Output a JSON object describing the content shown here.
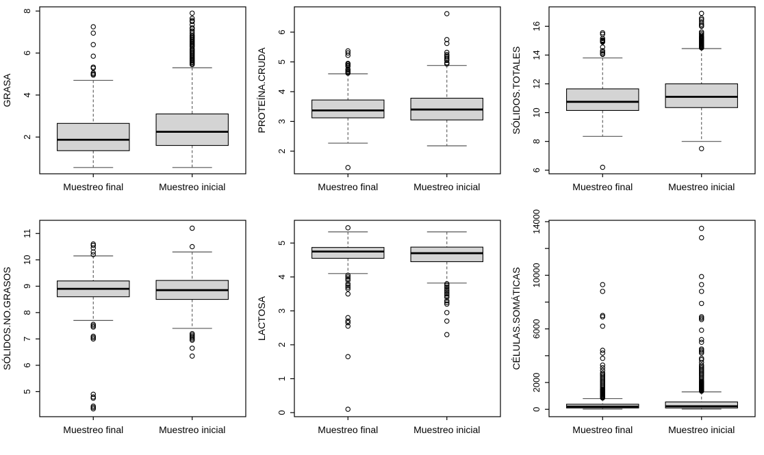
{
  "page": {
    "background": "#ffffff",
    "plot_style": {
      "box_fill": "#d4d4d4",
      "box_stroke": "#000000",
      "median_color": "#000000",
      "whisker_color": "#555555",
      "axis_color": "#000000",
      "outlier_stroke": "#000000"
    }
  },
  "chart_data": [
    {
      "type": "boxplot",
      "ylabel": "GRASA",
      "categories": [
        "Muestreo final",
        "Muestreo inicial"
      ],
      "ylim": [
        0.25,
        8.2
      ],
      "yticks": [
        2,
        4,
        6,
        8
      ],
      "series": [
        {
          "name": "Muestreo final",
          "whisker_low": 0.55,
          "q1": 1.35,
          "median": 1.87,
          "q3": 2.65,
          "whisker_high": 4.7,
          "outliers": [
            4.95,
            5.0,
            5.05,
            5.28,
            5.33,
            5.85,
            6.4,
            6.95,
            7.25
          ]
        },
        {
          "name": "Muestreo inicial",
          "whisker_low": 0.55,
          "q1": 1.6,
          "median": 2.25,
          "q3": 3.1,
          "whisker_high": 5.3,
          "outliers": [
            5.45,
            5.5,
            5.55,
            5.6,
            5.65,
            5.7,
            5.75,
            5.8,
            5.85,
            5.9,
            5.95,
            6.0,
            6.05,
            6.1,
            6.15,
            6.2,
            6.3,
            6.35,
            6.4,
            6.45,
            6.5,
            6.55,
            6.6,
            6.65,
            6.7,
            6.75,
            6.8,
            6.85,
            6.95,
            7.05,
            7.15,
            7.2,
            7.35,
            7.5,
            7.55,
            7.65,
            7.9
          ]
        }
      ]
    },
    {
      "type": "boxplot",
      "ylabel": "PROTEÍNA.CRUDA",
      "categories": [
        "Muestreo final",
        "Muestreo inicial"
      ],
      "ylim": [
        1.24,
        6.85
      ],
      "yticks": [
        2,
        3,
        4,
        5,
        6
      ],
      "series": [
        {
          "name": "Muestreo final",
          "whisker_low": 2.27,
          "q1": 3.12,
          "median": 3.37,
          "q3": 3.72,
          "whisker_high": 4.6,
          "outliers": [
            1.45,
            4.62,
            4.65,
            4.68,
            4.72,
            4.75,
            4.85,
            4.88,
            4.92,
            4.95,
            5.22,
            5.3,
            5.37
          ]
        },
        {
          "name": "Muestreo inicial",
          "whisker_low": 2.18,
          "q1": 3.05,
          "median": 3.4,
          "q3": 3.78,
          "whisker_high": 4.88,
          "outliers": [
            4.93,
            4.97,
            5.05,
            5.1,
            5.15,
            5.2,
            5.25,
            5.32,
            5.62,
            5.75,
            6.62
          ]
        }
      ]
    },
    {
      "type": "boxplot",
      "ylabel": "SÓLIDOS.TOTALES",
      "categories": [
        "Muestreo final",
        "Muestreo inicial"
      ],
      "ylim": [
        5.75,
        17.35
      ],
      "yticks": [
        6,
        8,
        10,
        12,
        14,
        16
      ],
      "series": [
        {
          "name": "Muestreo final",
          "whisker_low": 8.35,
          "q1": 10.15,
          "median": 10.75,
          "q3": 11.65,
          "whisker_high": 13.8,
          "outliers": [
            6.2,
            14.05,
            14.1,
            14.2,
            14.3,
            14.55,
            14.9,
            14.95,
            15.0,
            15.05,
            15.15,
            15.45,
            15.55
          ]
        },
        {
          "name": "Muestreo inicial",
          "whisker_low": 8.0,
          "q1": 10.35,
          "median": 11.1,
          "q3": 12.0,
          "whisker_high": 14.45,
          "outliers": [
            7.5,
            14.5,
            14.55,
            14.6,
            14.65,
            14.7,
            14.75,
            14.8,
            14.85,
            14.9,
            14.95,
            15.0,
            15.05,
            15.1,
            15.15,
            15.2,
            15.25,
            15.3,
            15.4,
            15.5,
            15.6,
            16.0,
            16.05,
            16.15,
            16.3,
            16.45,
            16.55,
            16.9
          ]
        }
      ]
    },
    {
      "type": "boxplot",
      "ylabel": "SÓLIDOS.NO.GRASOS",
      "categories": [
        "Muestreo final",
        "Muestreo inicial"
      ],
      "ylim": [
        4.05,
        11.5
      ],
      "yticks": [
        5,
        6,
        7,
        8,
        9,
        10,
        11
      ],
      "series": [
        {
          "name": "Muestreo final",
          "whisker_low": 7.7,
          "q1": 8.6,
          "median": 8.9,
          "q3": 9.2,
          "whisker_high": 10.15,
          "outliers": [
            4.35,
            4.4,
            4.45,
            4.75,
            4.8,
            4.9,
            7.0,
            7.05,
            7.1,
            7.45,
            7.5,
            7.55,
            10.2,
            10.3,
            10.45,
            10.55,
            10.6
          ]
        },
        {
          "name": "Muestreo inicial",
          "whisker_low": 7.4,
          "q1": 8.5,
          "median": 8.85,
          "q3": 9.22,
          "whisker_high": 10.3,
          "outliers": [
            6.35,
            6.65,
            6.95,
            7.0,
            7.05,
            7.1,
            7.15,
            7.2,
            10.5,
            11.2
          ]
        }
      ]
    },
    {
      "type": "boxplot",
      "ylabel": "LACTOSA",
      "categories": [
        "Muestreo final",
        "Muestreo inicial"
      ],
      "ylim": [
        -0.12,
        5.67
      ],
      "yticks": [
        0,
        1,
        2,
        3,
        4,
        5
      ],
      "series": [
        {
          "name": "Muestreo final",
          "whisker_low": 4.1,
          "q1": 4.55,
          "median": 4.75,
          "q3": 4.87,
          "whisker_high": 5.33,
          "outliers": [
            0.1,
            1.65,
            2.55,
            2.65,
            2.7,
            2.8,
            3.5,
            3.65,
            3.7,
            3.75,
            3.8,
            3.9,
            3.95,
            4.0,
            4.05,
            5.45
          ]
        },
        {
          "name": "Muestreo inicial",
          "whisker_low": 3.82,
          "q1": 4.45,
          "median": 4.7,
          "q3": 4.88,
          "whisker_high": 5.33,
          "outliers": [
            2.3,
            2.7,
            2.95,
            3.2,
            3.25,
            3.3,
            3.4,
            3.45,
            3.5,
            3.55,
            3.6,
            3.65,
            3.7,
            3.75,
            3.8
          ]
        }
      ]
    },
    {
      "type": "boxplot",
      "ylabel": "CÉLULAS.SOMÁTICAS",
      "categories": [
        "Muestreo final",
        "Muestreo inicial"
      ],
      "ylim": [
        -550,
        14100
      ],
      "yticks": [
        0,
        2000,
        6000,
        10000,
        14000
      ],
      "minor_yticks": [
        4000,
        8000,
        12000
      ],
      "series": [
        {
          "name": "Muestreo final",
          "whisker_low": 10,
          "q1": 100,
          "median": 200,
          "q3": 380,
          "whisker_high": 800,
          "outliers": [
            850,
            900,
            950,
            1000,
            1050,
            1100,
            1150,
            1200,
            1250,
            1300,
            1350,
            1400,
            1450,
            1500,
            1600,
            1700,
            1800,
            1900,
            2000,
            2100,
            2200,
            2300,
            2400,
            2500,
            2600,
            2700,
            2900,
            3100,
            3300,
            3800,
            4200,
            4400,
            6200,
            6900,
            7000,
            8800,
            9300
          ]
        },
        {
          "name": "Muestreo inicial",
          "whisker_low": 10,
          "q1": 100,
          "median": 230,
          "q3": 550,
          "whisker_high": 1300,
          "outliers": [
            1350,
            1400,
            1450,
            1500,
            1550,
            1600,
            1650,
            1700,
            1750,
            1800,
            1850,
            1900,
            1950,
            2000,
            2050,
            2100,
            2200,
            2300,
            2400,
            2500,
            2600,
            2700,
            2800,
            2900,
            3000,
            3100,
            3200,
            3300,
            3500,
            3700,
            3800,
            4200,
            4300,
            4400,
            4500,
            5000,
            5200,
            5900,
            6700,
            6800,
            6900,
            7900,
            8800,
            9300,
            9900,
            12800,
            13500
          ]
        }
      ]
    }
  ]
}
